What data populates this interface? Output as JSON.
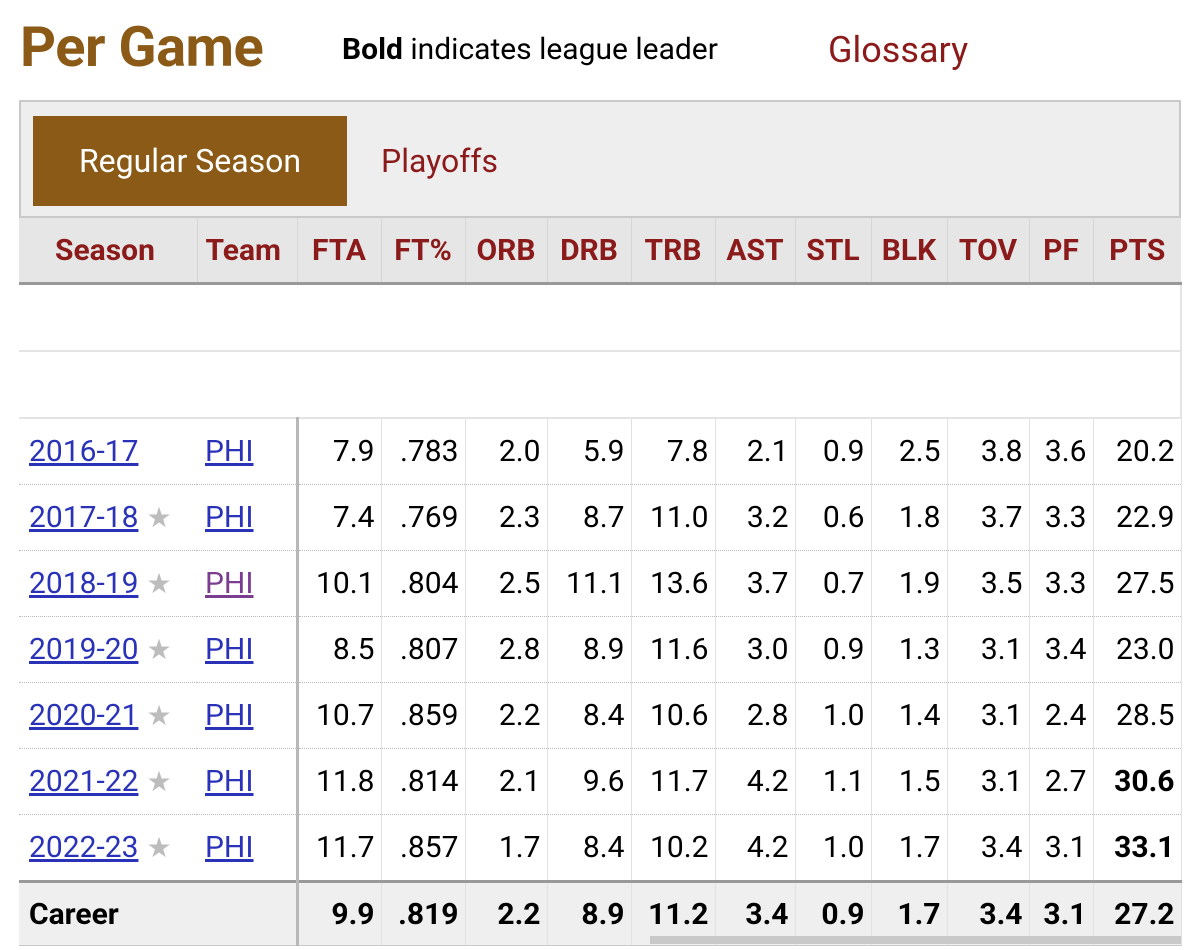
{
  "header": {
    "title": "Per Game",
    "legend_bold": "Bold",
    "legend_rest": " indicates league leader",
    "glossary_link": "Glossary"
  },
  "tabs": [
    {
      "label": "Regular Season",
      "active": true
    },
    {
      "label": "Playoffs",
      "active": false
    }
  ],
  "table": {
    "columns": [
      "Season",
      "Team",
      "FTA",
      "FT%",
      "ORB",
      "DRB",
      "TRB",
      "AST",
      "STL",
      "BLK",
      "TOV",
      "PF",
      "PTS"
    ],
    "rows": [
      {
        "season": "2016-17",
        "allstar": false,
        "team": "PHI",
        "team_visited": false,
        "stats": [
          "7.9",
          ".783",
          "2.0",
          "5.9",
          "7.8",
          "2.1",
          "0.9",
          "2.5",
          "3.8",
          "3.6",
          "20.2"
        ],
        "bold": []
      },
      {
        "season": "2017-18",
        "allstar": true,
        "team": "PHI",
        "team_visited": false,
        "stats": [
          "7.4",
          ".769",
          "2.3",
          "8.7",
          "11.0",
          "3.2",
          "0.6",
          "1.8",
          "3.7",
          "3.3",
          "22.9"
        ],
        "bold": []
      },
      {
        "season": "2018-19",
        "allstar": true,
        "team": "PHI",
        "team_visited": true,
        "stats": [
          "10.1",
          ".804",
          "2.5",
          "11.1",
          "13.6",
          "3.7",
          "0.7",
          "1.9",
          "3.5",
          "3.3",
          "27.5"
        ],
        "bold": []
      },
      {
        "season": "2019-20",
        "allstar": true,
        "team": "PHI",
        "team_visited": false,
        "stats": [
          "8.5",
          ".807",
          "2.8",
          "8.9",
          "11.6",
          "3.0",
          "0.9",
          "1.3",
          "3.1",
          "3.4",
          "23.0"
        ],
        "bold": []
      },
      {
        "season": "2020-21",
        "allstar": true,
        "team": "PHI",
        "team_visited": false,
        "stats": [
          "10.7",
          ".859",
          "2.2",
          "8.4",
          "10.6",
          "2.8",
          "1.0",
          "1.4",
          "3.1",
          "2.4",
          "28.5"
        ],
        "bold": []
      },
      {
        "season": "2021-22",
        "allstar": true,
        "team": "PHI",
        "team_visited": false,
        "stats": [
          "11.8",
          ".814",
          "2.1",
          "9.6",
          "11.7",
          "4.2",
          "1.1",
          "1.5",
          "3.1",
          "2.7",
          "30.6"
        ],
        "bold": [
          "PTS"
        ]
      },
      {
        "season": "2022-23",
        "allstar": true,
        "team": "PHI",
        "team_visited": false,
        "stats": [
          "11.7",
          ".857",
          "1.7",
          "8.4",
          "10.2",
          "4.2",
          "1.0",
          "1.7",
          "3.4",
          "3.1",
          "33.1"
        ],
        "bold": [
          "PTS"
        ]
      }
    ],
    "career": {
      "label": "Career",
      "stats": [
        "9.9",
        ".819",
        "2.2",
        "8.9",
        "11.2",
        "3.4",
        "0.9",
        "1.7",
        "3.4",
        "3.1",
        "27.2"
      ]
    }
  },
  "colors": {
    "brand": "#8a5a16",
    "link_red": "#8b1a1a",
    "link_blue": "#2a32b8",
    "visited": "#7a3d8f"
  },
  "icons": {
    "allstar": "star-icon"
  }
}
